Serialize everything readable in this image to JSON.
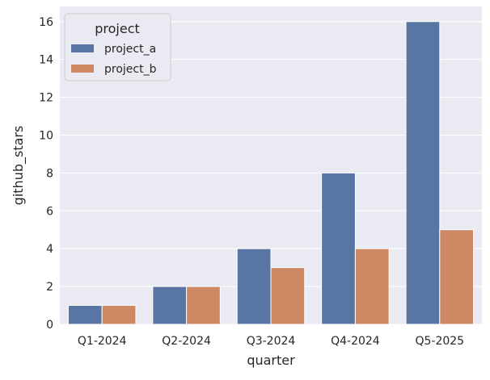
{
  "chart_data": {
    "type": "bar",
    "xlabel": "quarter",
    "ylabel": "github_stars",
    "categories": [
      "Q1-2024",
      "Q2-2024",
      "Q3-2024",
      "Q4-2024",
      "Q5-2025"
    ],
    "series": [
      {
        "name": "project_a",
        "values": [
          1,
          2,
          4,
          8,
          16
        ],
        "color": "#5975a4"
      },
      {
        "name": "project_b",
        "values": [
          1,
          2,
          3,
          4,
          5
        ],
        "color": "#cc8963"
      }
    ],
    "ylim": [
      0,
      16.8
    ],
    "yticks": [
      "0",
      "2",
      "4",
      "6",
      "8",
      "10",
      "12",
      "14",
      "16"
    ],
    "grid": true,
    "background": "#eaeaf2",
    "legend": {
      "title": "project",
      "placement": "top-left"
    }
  }
}
